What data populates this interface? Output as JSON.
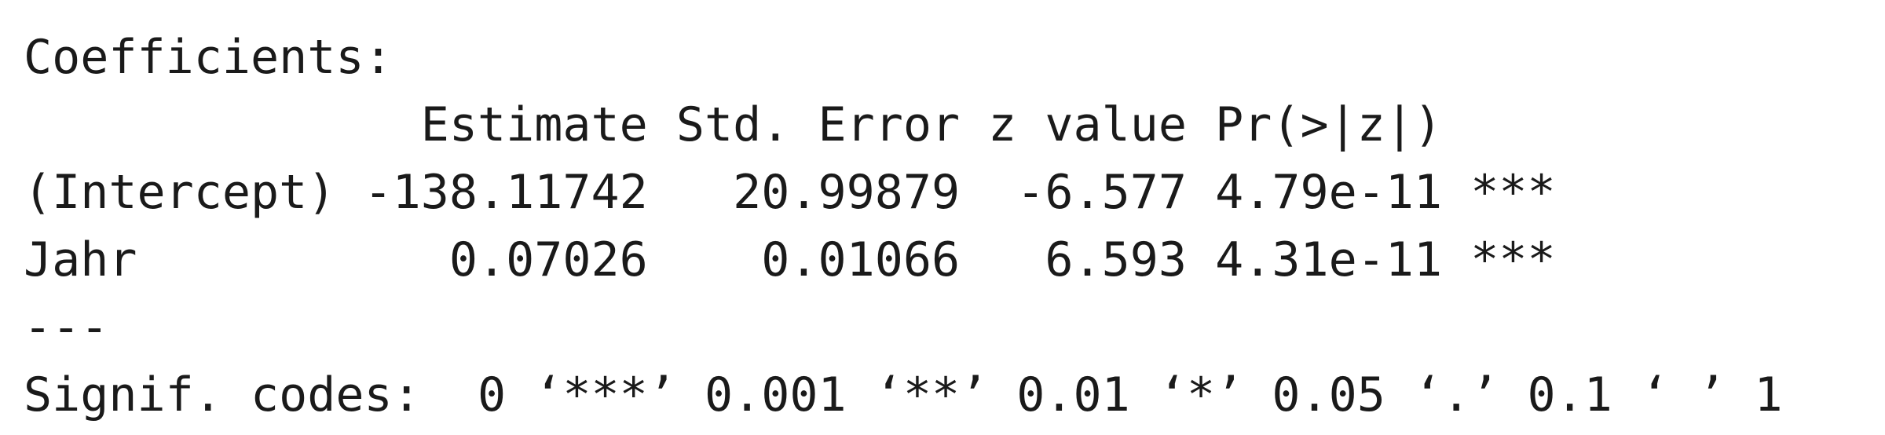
{
  "output": {
    "heading": "Coefficients:",
    "header_row": "              Estimate Std. Error z value Pr(>|z|)    ",
    "rows": [
      {
        "text": "(Intercept) -138.11742   20.99879  -6.577 4.79e-11 ***"
      },
      {
        "text": "Jahr           0.07026    0.01066   6.593 4.31e-11 ***"
      }
    ],
    "separator": "---",
    "signif_codes": "Signif. codes:  0 ‘***’ 0.001 ‘**’ 0.01 ‘*’ 0.05 ‘.’ 0.1 ‘ ’ 1"
  }
}
